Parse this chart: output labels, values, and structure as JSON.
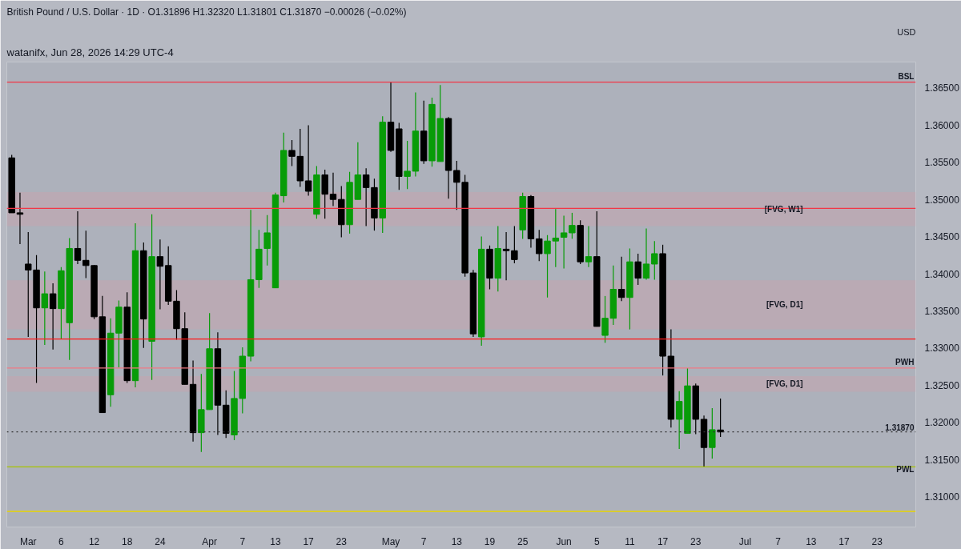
{
  "chart_data": {
    "type": "candlestick",
    "title": "British Pound / U.S. Dollar · 1D · O1.31896 H1.32320 L1.31801 C1.31870 −0.00026 (−0.02%)",
    "annotations": [
      "watanifx, Jun 28, 2026 14:29 UTC-4",
      "USD"
    ],
    "categories": [
      null,
      null,
      "Mar",
      null,
      null,
      null,
      "6",
      null,
      null,
      null,
      "12",
      null,
      null,
      null,
      "18",
      null,
      null,
      null,
      "24",
      null,
      null,
      null,
      null,
      null,
      "Apr",
      null,
      null,
      null,
      "7",
      null,
      null,
      null,
      "13",
      null,
      null,
      null,
      "17",
      null,
      null,
      null,
      "23",
      null,
      null,
      null,
      null,
      null,
      "May",
      null,
      null,
      null,
      "7",
      null,
      null,
      null,
      "13",
      null,
      null,
      null,
      "19",
      null,
      null,
      null,
      "25",
      null,
      null,
      null,
      null,
      "Jun",
      null,
      null,
      null,
      "5",
      null,
      null,
      null,
      "11",
      null,
      null,
      null,
      "17",
      null,
      null,
      null,
      "23",
      null,
      null,
      null,
      null,
      null,
      "Jul",
      null,
      null,
      null,
      "7",
      null,
      null,
      null,
      "13",
      null,
      null,
      null,
      "17",
      null,
      null,
      null,
      "23",
      null,
      null,
      null
    ],
    "ohlc": [
      [
        1.3556,
        1.356,
        1.3482,
        1.3482
      ],
      [
        1.3482,
        1.3509,
        1.344,
        1.348
      ],
      [
        1.3413,
        1.3456,
        1.3315,
        1.3405
      ],
      [
        1.3405,
        1.3425,
        1.3253,
        1.3354
      ],
      [
        1.3354,
        1.3403,
        1.3304,
        1.3373
      ],
      [
        1.3373,
        1.3387,
        1.3298,
        1.3353
      ],
      [
        1.3353,
        1.3409,
        1.3312,
        1.3404
      ],
      [
        1.3334,
        1.3448,
        1.3284,
        1.3434
      ],
      [
        1.3434,
        1.3484,
        1.3413,
        1.3418
      ],
      [
        1.3418,
        1.3458,
        1.3394,
        1.3411
      ],
      [
        1.3411,
        1.3412,
        1.3339,
        1.3342
      ],
      [
        1.3342,
        1.337,
        1.3213,
        1.3213
      ],
      [
        1.3237,
        1.334,
        1.3221,
        1.332
      ],
      [
        1.332,
        1.3364,
        1.3274,
        1.3355
      ],
      [
        1.3355,
        1.3375,
        1.3253,
        1.3256
      ],
      [
        1.3256,
        1.3468,
        1.3247,
        1.3431
      ],
      [
        1.3431,
        1.3442,
        1.33,
        1.3339
      ],
      [
        1.3309,
        1.348,
        1.3257,
        1.3423
      ],
      [
        1.3423,
        1.3446,
        1.3352,
        1.341
      ],
      [
        1.3411,
        1.3437,
        1.3358,
        1.3363
      ],
      [
        1.3363,
        1.3378,
        1.3311,
        1.3326
      ],
      [
        1.3326,
        1.3348,
        1.3251,
        1.3251
      ],
      [
        1.3251,
        1.3283,
        1.3174,
        1.3186
      ],
      [
        1.3186,
        1.3265,
        1.316,
        1.3217
      ],
      [
        1.3217,
        1.3347,
        1.3217,
        1.3299
      ],
      [
        1.3299,
        1.3321,
        1.3183,
        1.3223
      ],
      [
        1.3223,
        1.3243,
        1.3179,
        1.3185
      ],
      [
        1.3183,
        1.3269,
        1.3176,
        1.3232
      ],
      [
        1.3232,
        1.3301,
        1.3212,
        1.3289
      ],
      [
        1.3289,
        1.3486,
        1.3282,
        1.3392
      ],
      [
        1.3392,
        1.3459,
        1.3381,
        1.3433
      ],
      [
        1.3434,
        1.3479,
        1.3411,
        1.3455
      ],
      [
        1.3381,
        1.3509,
        1.3381,
        1.3506
      ],
      [
        1.3505,
        1.359,
        1.3496,
        1.3566
      ],
      [
        1.3566,
        1.358,
        1.3545,
        1.3558
      ],
      [
        1.3558,
        1.3595,
        1.3517,
        1.3525
      ],
      [
        1.3525,
        1.36,
        1.3505,
        1.3511
      ],
      [
        1.348,
        1.3545,
        1.3474,
        1.3533
      ],
      [
        1.3533,
        1.354,
        1.3474,
        1.3507
      ],
      [
        1.3507,
        1.3536,
        1.3491,
        1.35
      ],
      [
        1.35,
        1.3518,
        1.3449,
        1.3466
      ],
      [
        1.3466,
        1.3537,
        1.3454,
        1.3523
      ],
      [
        1.35,
        1.3577,
        1.35,
        1.3533
      ],
      [
        1.3533,
        1.3542,
        1.3464,
        1.3516
      ],
      [
        1.3516,
        1.3528,
        1.3458,
        1.3475
      ],
      [
        1.3475,
        1.3612,
        1.3455,
        1.3604
      ],
      [
        1.3604,
        1.3658,
        1.3564,
        1.3566
      ],
      [
        1.3595,
        1.3603,
        1.3513,
        1.3531
      ],
      [
        1.3531,
        1.3579,
        1.3514,
        1.3538
      ],
      [
        1.3538,
        1.3644,
        1.3531,
        1.3592
      ],
      [
        1.3592,
        1.3633,
        1.3548,
        1.3552
      ],
      [
        1.3552,
        1.3637,
        1.3544,
        1.3628
      ],
      [
        1.3551,
        1.3654,
        1.3551,
        1.3609
      ],
      [
        1.3609,
        1.3611,
        1.3501,
        1.3539
      ],
      [
        1.3539,
        1.3552,
        1.3486,
        1.3523
      ],
      [
        1.3523,
        1.3533,
        1.3396,
        1.3401
      ],
      [
        1.3401,
        1.3405,
        1.3315,
        1.3319
      ],
      [
        1.3315,
        1.345,
        1.3303,
        1.3433
      ],
      [
        1.3433,
        1.3438,
        1.3379,
        1.3394
      ],
      [
        1.3394,
        1.3464,
        1.3376,
        1.3434
      ],
      [
        1.3433,
        1.3456,
        1.3391,
        1.3431
      ],
      [
        1.3431,
        1.3464,
        1.3414,
        1.3419
      ],
      [
        1.3459,
        1.3509,
        1.3447,
        1.3504
      ],
      [
        1.3504,
        1.3506,
        1.3435,
        1.3447
      ],
      [
        1.3447,
        1.3459,
        1.3417,
        1.3427
      ],
      [
        1.3427,
        1.3452,
        1.3368,
        1.3444
      ],
      [
        1.3444,
        1.3487,
        1.3409,
        1.3448
      ],
      [
        1.3449,
        1.3478,
        1.3407,
        1.3455
      ],
      [
        1.3455,
        1.3482,
        1.3447,
        1.3465
      ],
      [
        1.3465,
        1.3472,
        1.3413,
        1.3416
      ],
      [
        1.3416,
        1.3464,
        1.3409,
        1.3423
      ],
      [
        1.3423,
        1.3484,
        1.3329,
        1.3329
      ],
      [
        1.3317,
        1.337,
        1.3307,
        1.334
      ],
      [
        1.334,
        1.3411,
        1.3331,
        1.3379
      ],
      [
        1.3379,
        1.3423,
        1.3363,
        1.3368
      ],
      [
        1.3368,
        1.3434,
        1.3325,
        1.3416
      ],
      [
        1.3416,
        1.3427,
        1.3385,
        1.3394
      ],
      [
        1.3394,
        1.3461,
        1.3392,
        1.3413
      ],
      [
        1.3413,
        1.3444,
        1.3392,
        1.3427
      ],
      [
        1.3427,
        1.3439,
        1.3263,
        1.3289
      ],
      [
        1.3289,
        1.3325,
        1.3193,
        1.3204
      ],
      [
        1.3204,
        1.3242,
        1.3164,
        1.3228
      ],
      [
        1.3185,
        1.3273,
        1.3185,
        1.3249
      ],
      [
        1.3249,
        1.3252,
        1.3184,
        1.3204
      ],
      [
        1.3204,
        1.3209,
        1.314,
        1.3166
      ],
      [
        1.3166,
        1.3219,
        1.3151,
        1.319
      ],
      [
        1.31896,
        1.3232,
        1.31801,
        1.3187
      ],
      null,
      null,
      null,
      null,
      null,
      null,
      null,
      null,
      null,
      null,
      null,
      null,
      null,
      null,
      null,
      null,
      null,
      null,
      null,
      null,
      null,
      null
    ],
    "colors": [
      "#000000",
      "#000000",
      "#000000",
      "#000000",
      "#089c08",
      "#000000",
      "#089c08",
      "#089c08",
      "#000000",
      "#000000",
      "#000000",
      "#000000",
      "#089c08",
      "#089c08",
      "#000000",
      "#089c08",
      "#000000",
      "#089c08",
      "#000000",
      "#000000",
      "#000000",
      "#000000",
      "#000000",
      "#089c08",
      "#089c08",
      "#000000",
      "#000000",
      "#089c08",
      "#089c08",
      "#089c08",
      "#089c08",
      "#089c08",
      "#089c08",
      "#089c08",
      "#000000",
      "#000000",
      "#000000",
      "#089c08",
      "#000000",
      "#000000",
      "#000000",
      "#089c08",
      "#089c08",
      "#000000",
      "#000000",
      "#089c08",
      "#000000",
      "#000000",
      "#089c08",
      "#089c08",
      "#000000",
      "#089c08",
      "#089c08",
      "#000000",
      "#000000",
      "#000000",
      "#000000",
      "#089c08",
      "#000000",
      "#089c08",
      "#000000",
      "#000000",
      "#089c08",
      "#000000",
      "#000000",
      "#089c08",
      "#089c08",
      "#089c08",
      "#089c08",
      "#000000",
      "#089c08",
      "#000000",
      "#089c08",
      "#089c08",
      "#000000",
      "#089c08",
      "#000000",
      "#089c08",
      "#089c08",
      "#000000",
      "#000000",
      "#089c08",
      "#089c08",
      "#000000",
      "#000000",
      "#089c08",
      "#000000",
      null,
      null,
      null,
      null,
      null,
      null,
      null,
      null,
      null,
      null,
      null,
      null,
      null,
      null,
      null,
      null,
      null,
      null,
      null,
      null,
      null,
      null
    ],
    "ylim": [
      1.3059,
      1.3685
    ],
    "yticks": [
      {
        "value": 1.31,
        "label": "1.31000"
      },
      {
        "value": 1.315,
        "label": "1.31500"
      },
      {
        "value": 1.32,
        "label": "1.32000"
      },
      {
        "value": 1.325,
        "label": "1.32500"
      },
      {
        "value": 1.33,
        "label": "1.33000"
      },
      {
        "value": 1.335,
        "label": "1.33500"
      },
      {
        "value": 1.34,
        "label": "1.34000"
      },
      {
        "value": 1.345,
        "label": "1.34500"
      },
      {
        "value": 1.35,
        "label": "1.35000"
      },
      {
        "value": 1.355,
        "label": "1.35500"
      },
      {
        "value": 1.36,
        "label": "1.36000"
      },
      {
        "value": 1.365,
        "label": "1.36500"
      }
    ],
    "ref_lines": [
      {
        "axis": "y",
        "value": 1.3658,
        "label": "BSL",
        "color": "#f23645"
      },
      {
        "axis": "y",
        "value": 1.3488,
        "color": "#f23645"
      },
      {
        "axis": "y",
        "value": 1.3312,
        "color": "#ff1a1a"
      },
      {
        "axis": "y",
        "value": 1.3273,
        "label": "PWH",
        "color": "#f07a84"
      },
      {
        "axis": "y",
        "value": 1.3187,
        "label": "1.31870",
        "color": "#333333",
        "line_style": "dotted"
      },
      {
        "axis": "y",
        "value": 1.314,
        "label": "PWL",
        "color": "#a8c400"
      },
      {
        "axis": "y",
        "value": 1.308,
        "color": "#e8d400"
      }
    ],
    "bands": [
      {
        "axis": "y",
        "from": 1.3464,
        "to": 1.351,
        "label": "[FVG, W1]",
        "color": "#c8a4ae"
      },
      {
        "axis": "y",
        "from": 1.3325,
        "to": 1.3391,
        "label": "[FVG, D1]",
        "color": "#c8a4ae"
      },
      {
        "axis": "y",
        "from": 1.3241,
        "to": 1.3262,
        "label": "[FVG, D1]",
        "color": "#c8a4ae"
      }
    ],
    "grid": false
  }
}
